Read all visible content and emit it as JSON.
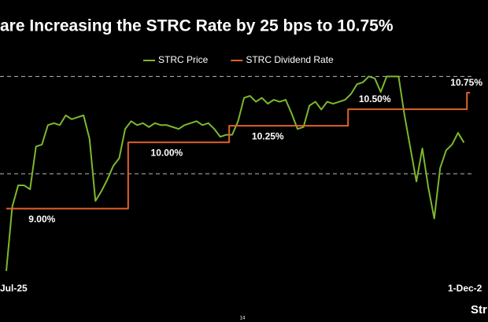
{
  "chart_data": {
    "type": "line",
    "title": "are Increasing the STRC Rate by 25 bps to 10.75%",
    "categories": [
      "Jul-25",
      null,
      null,
      null,
      null,
      null,
      null,
      null,
      null,
      null,
      null,
      null,
      null,
      null,
      null,
      null,
      null,
      null,
      null,
      null,
      null,
      null,
      null,
      null,
      null,
      null,
      null,
      null,
      null,
      null,
      null,
      null,
      null,
      null,
      null,
      null,
      null,
      null,
      null,
      null,
      null,
      null,
      null,
      null,
      null,
      null,
      null,
      null,
      null,
      null,
      null,
      null,
      null,
      null,
      null,
      null,
      null,
      null,
      null,
      null,
      null,
      null,
      null,
      null,
      null,
      null,
      null,
      null,
      null,
      null,
      null,
      null,
      null,
      null,
      null,
      null,
      null,
      null,
      "1-Dec-2"
    ],
    "series": [
      {
        "name": "STRC Price",
        "color": "#7cb82f",
        "values": [
          90.0,
          93.3,
          94.4,
          94.4,
          94.2,
          96.4,
          96.5,
          97.5,
          97.6,
          97.5,
          98.0,
          97.8,
          97.9,
          98.0,
          96.8,
          93.6,
          94.1,
          94.7,
          95.4,
          95.8,
          97.3,
          97.7,
          97.5,
          97.6,
          97.4,
          97.6,
          97.5,
          97.5,
          97.4,
          97.3,
          97.5,
          97.6,
          97.7,
          97.5,
          97.6,
          97.3,
          96.9,
          97.0,
          97.0,
          97.7,
          98.9,
          99.0,
          98.7,
          98.9,
          98.6,
          98.8,
          98.7,
          98.8,
          98.1,
          97.3,
          97.4,
          98.5,
          98.7,
          98.3,
          98.7,
          98.6,
          98.7,
          98.8,
          99.1,
          99.6,
          99.7,
          100.0,
          99.9,
          99.2,
          100.0,
          100.0,
          100.0,
          98.0,
          96.3,
          94.6,
          96.3,
          94.3,
          92.7,
          95.3,
          96.2,
          96.5,
          97.1,
          96.6,
          null
        ]
      },
      {
        "name": "STRC Dividend Rate",
        "color": "#e0622a",
        "axis": "y2",
        "step": true,
        "values": [
          9,
          9,
          9,
          9,
          9,
          9,
          9,
          9,
          9,
          9,
          9,
          9,
          9,
          9,
          9,
          9,
          9,
          9,
          9,
          9,
          9,
          10,
          10,
          10,
          10,
          10,
          10,
          10,
          10,
          10,
          10,
          10,
          10,
          10,
          10,
          10,
          10,
          10,
          10.25,
          10.25,
          10.25,
          10.25,
          10.25,
          10.25,
          10.25,
          10.25,
          10.25,
          10.25,
          10.25,
          10.25,
          10.25,
          10.25,
          10.25,
          10.25,
          10.25,
          10.25,
          10.25,
          10.25,
          10.5,
          10.5,
          10.5,
          10.5,
          10.5,
          10.5,
          10.5,
          10.5,
          10.5,
          10.5,
          10.5,
          10.5,
          10.5,
          10.5,
          10.5,
          10.5,
          10.5,
          10.5,
          10.5,
          10.5,
          10.75
        ],
        "value_labels": [
          null,
          null,
          null,
          null,
          null,
          null,
          "9.00%",
          null,
          null,
          null,
          null,
          null,
          null,
          null,
          null,
          null,
          null,
          null,
          null,
          null,
          null,
          null,
          null,
          null,
          null,
          null,
          null,
          "10.00%",
          null,
          null,
          null,
          null,
          null,
          null,
          null,
          null,
          null,
          null,
          null,
          null,
          null,
          null,
          null,
          null,
          "10.25%",
          null,
          null,
          null,
          null,
          null,
          null,
          null,
          null,
          null,
          null,
          null,
          null,
          null,
          null,
          null,
          null,
          null,
          "10.50%",
          null,
          null,
          null,
          null,
          null,
          null,
          null,
          null,
          null,
          null,
          null,
          null,
          null,
          null,
          null,
          "10.75%"
        ]
      }
    ],
    "ylim": [
      89.8,
      100.7
    ],
    "yticks": [
      95,
      100
    ],
    "y2lim": [
      8,
      11.2
    ],
    "grid": true,
    "grid_style": "dashed",
    "legend": "top"
  },
  "footer": {
    "logo": "Str",
    "page": "14"
  }
}
